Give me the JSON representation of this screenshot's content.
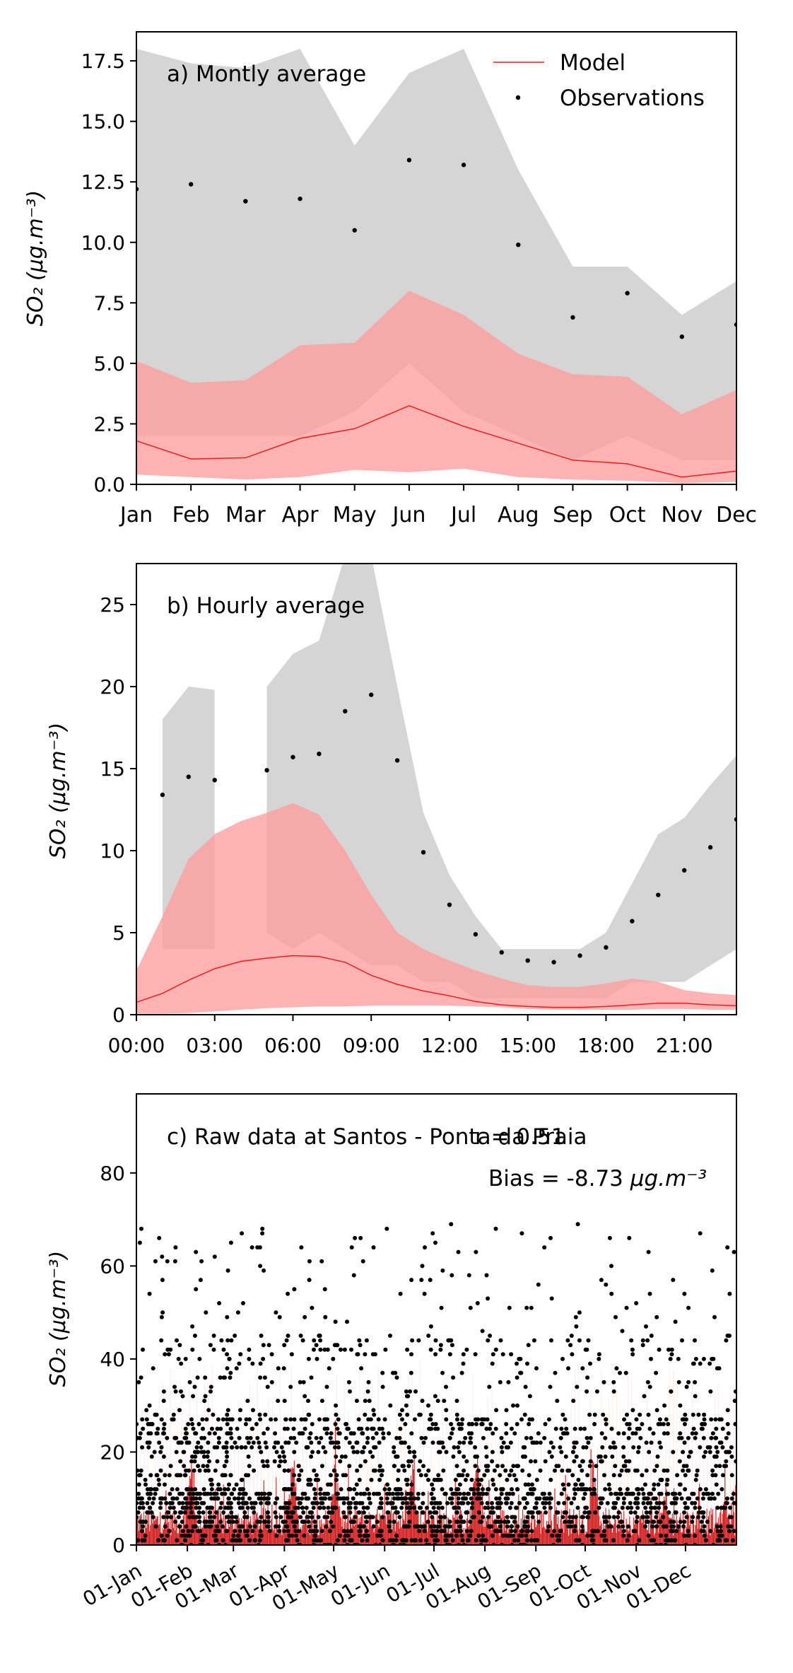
{
  "chart_data": [
    {
      "type": "line",
      "panel_label": "a) Montly average",
      "ylabel": "SO₂ (μg.m⁻³)",
      "x_tick_labels": [
        "Jan",
        "Feb",
        "Mar",
        "Apr",
        "May",
        "Jun",
        "Jul",
        "Aug",
        "Sep",
        "Oct",
        "Nov",
        "Dec"
      ],
      "xlim": [
        0,
        11
      ],
      "ylim": [
        0,
        18.7
      ],
      "yticks": [
        0.0,
        2.5,
        5.0,
        7.5,
        10.0,
        12.5,
        15.0,
        17.5
      ],
      "y_tick_labels": [
        "0.0",
        "2.5",
        "5.0",
        "7.5",
        "10.0",
        "12.5",
        "15.0",
        "17.5"
      ],
      "legend": {
        "position": "top-right",
        "entries": [
          "Model",
          "Observations"
        ]
      },
      "observations": [
        12.2,
        12.4,
        11.7,
        11.8,
        10.5,
        13.4,
        13.2,
        9.9,
        6.9,
        7.9,
        6.1,
        6.6
      ],
      "obs_band_lower": [
        2.0,
        2.0,
        2.0,
        2.0,
        3.0,
        5.0,
        3.0,
        2.0,
        1.0,
        2.0,
        1.0,
        1.0
      ],
      "obs_band_upper": [
        18.0,
        17.4,
        17.2,
        18.0,
        14.0,
        17.0,
        18.0,
        13.0,
        9.0,
        9.0,
        7.0,
        8.4
      ],
      "model": [
        1.8,
        1.05,
        1.1,
        1.9,
        2.3,
        3.25,
        2.4,
        1.7,
        1.0,
        0.85,
        0.3,
        0.55
      ],
      "model_band_lower": [
        0.4,
        0.3,
        0.2,
        0.3,
        0.6,
        0.5,
        0.65,
        0.3,
        0.2,
        0.15,
        0.05,
        0.1
      ],
      "model_band_upper": [
        5.1,
        4.2,
        4.3,
        5.75,
        5.85,
        8.0,
        7.0,
        5.4,
        4.55,
        4.45,
        2.9,
        3.9
      ]
    },
    {
      "type": "line",
      "panel_label": "b) Hourly average",
      "ylabel": "SO₂ (μg.m⁻³)",
      "x_tick_labels": [
        "00:00",
        "03:00",
        "06:00",
        "09:00",
        "12:00",
        "15:00",
        "18:00",
        "21:00"
      ],
      "xticks": [
        0,
        3,
        6,
        9,
        12,
        15,
        18,
        21
      ],
      "xlim": [
        0,
        23
      ],
      "ylim": [
        0,
        27.5
      ],
      "yticks": [
        0,
        5,
        10,
        15,
        20,
        25
      ],
      "y_tick_labels": [
        "0",
        "5",
        "10",
        "15",
        "20",
        "25"
      ],
      "observations": [
        {
          "x": 1,
          "y": 13.4
        },
        {
          "x": 2,
          "y": 14.5
        },
        {
          "x": 3,
          "y": 14.3
        },
        {
          "x": 5,
          "y": 14.9
        },
        {
          "x": 6,
          "y": 15.7
        },
        {
          "x": 7,
          "y": 15.9
        },
        {
          "x": 8,
          "y": 18.5
        },
        {
          "x": 9,
          "y": 19.5
        },
        {
          "x": 10,
          "y": 15.5
        },
        {
          "x": 11,
          "y": 9.9
        },
        {
          "x": 12,
          "y": 6.7
        },
        {
          "x": 13,
          "y": 4.9
        },
        {
          "x": 14,
          "y": 3.8
        },
        {
          "x": 15,
          "y": 3.3
        },
        {
          "x": 16,
          "y": 3.2
        },
        {
          "x": 17,
          "y": 3.6
        },
        {
          "x": 18,
          "y": 4.1
        },
        {
          "x": 19,
          "y": 5.7
        },
        {
          "x": 20,
          "y": 7.3
        },
        {
          "x": 21,
          "y": 8.8
        },
        {
          "x": 22,
          "y": 10.2
        },
        {
          "x": 23,
          "y": 11.9
        }
      ],
      "obs_band_segments": [
        {
          "x": [
            1,
            2,
            3
          ],
          "lower": [
            4,
            4,
            4
          ],
          "upper": [
            18,
            20,
            19.8
          ]
        },
        {
          "x": [
            5,
            6,
            7,
            8,
            9,
            10,
            11,
            12,
            13,
            14,
            15,
            16,
            17,
            18,
            19,
            20,
            21,
            22,
            23
          ],
          "lower": [
            5,
            4,
            5,
            4,
            3,
            3,
            2,
            2,
            1,
            1,
            1,
            1,
            1,
            1,
            2,
            2,
            2,
            3,
            4
          ],
          "upper": [
            20,
            22,
            22.8,
            28,
            28,
            20,
            12.3,
            8.5,
            6,
            4,
            4,
            4,
            4,
            5,
            8,
            11,
            12,
            14,
            15.8
          ]
        }
      ],
      "model": [
        0.75,
        1.3,
        2.1,
        2.8,
        3.25,
        3.45,
        3.6,
        3.55,
        3.2,
        2.4,
        1.85,
        1.45,
        1.15,
        0.8,
        0.6,
        0.5,
        0.45,
        0.45,
        0.5,
        0.6,
        0.7,
        0.7,
        0.6,
        0.55
      ],
      "model_band_lower": [
        0.05,
        0.05,
        0.1,
        0.2,
        0.3,
        0.4,
        0.45,
        0.5,
        0.5,
        0.55,
        0.55,
        0.55,
        0.55,
        0.5,
        0.45,
        0.35,
        0.3,
        0.3,
        0.3,
        0.3,
        0.35,
        0.35,
        0.3,
        0.3
      ],
      "model_band_upper": [
        2.7,
        6.0,
        9.5,
        11.0,
        11.8,
        12.3,
        12.9,
        12.2,
        10.0,
        7.3,
        5.0,
        4.0,
        3.3,
        2.7,
        2.2,
        1.8,
        1.7,
        1.7,
        1.9,
        2.2,
        2.0,
        1.5,
        1.3,
        1.2
      ]
    },
    {
      "type": "scatter",
      "panel_label": "c) Raw data at Santos - Ponta da Praia",
      "r_label": "r = 0.51",
      "bias_label": "Bias = -8.73",
      "bias_unit": "μg.m⁻³",
      "ylabel": "SO₂ (μg.m⁻³)",
      "x_tick_labels": [
        "01-Jan",
        "01-Feb",
        "01-Mar",
        "01-Apr",
        "01-May",
        "01-Jun",
        "01-Jul",
        "01-Aug",
        "01-Sep",
        "01-Oct",
        "01-Nov",
        "01-Dec"
      ],
      "x_tick_days": [
        0,
        31,
        59,
        90,
        120,
        151,
        181,
        212,
        243,
        273,
        304,
        334
      ],
      "xlim": [
        0,
        365
      ],
      "ylim": [
        0,
        97
      ],
      "yticks": [
        0,
        20,
        40,
        60,
        80
      ],
      "y_tick_labels": [
        "0",
        "20",
        "40",
        "60",
        "80"
      ],
      "obs_density_per_month": [
        1.0,
        1.2,
        0.9,
        1.1,
        1.0,
        0.9,
        1.1,
        1.0,
        0.7,
        0.8,
        0.9,
        0.8
      ],
      "model_peaks": [
        {
          "day": 33,
          "value": 22
        },
        {
          "day": 95,
          "value": 23
        },
        {
          "day": 121,
          "value": 20
        },
        {
          "day": 168,
          "value": 21
        },
        {
          "day": 207,
          "value": 24
        },
        {
          "day": 278,
          "value": 23
        },
        {
          "day": 322,
          "value": 15
        },
        {
          "day": 358,
          "value": 13
        }
      ]
    }
  ],
  "colors": {
    "obs_band": "#d5d5d5",
    "model_band": "#ff9999",
    "model_line": "#ee1c1c",
    "raw_model": "#cc0000",
    "observations": "#000000"
  }
}
